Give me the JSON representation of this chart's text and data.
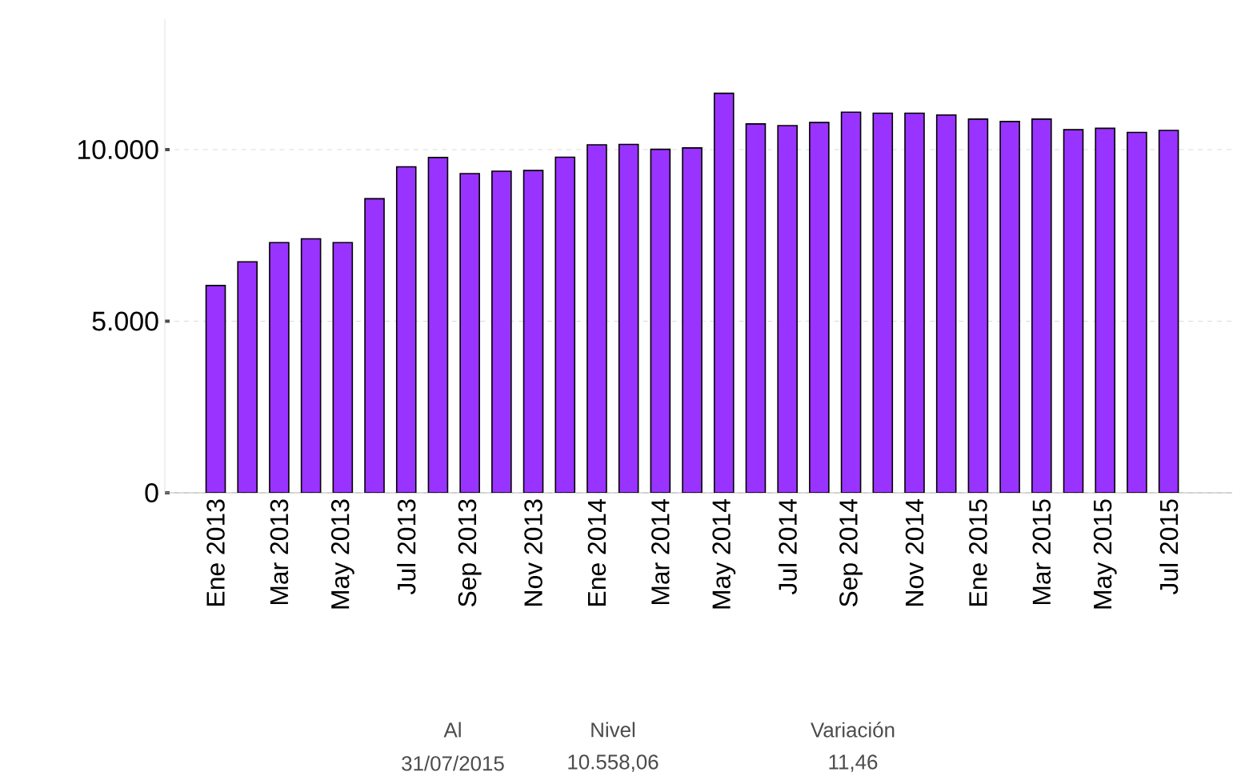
{
  "chart_data": {
    "type": "bar",
    "categories": [
      "Ene 2013",
      null,
      "Mar 2013",
      null,
      "May 2013",
      null,
      "Jul 2013",
      null,
      "Sep 2013",
      null,
      "Nov 2013",
      null,
      "Ene 2014",
      null,
      "Mar 2014",
      null,
      "May 2014",
      null,
      "Jul 2014",
      null,
      "Sep 2014",
      null,
      "Nov 2014",
      null,
      "Ene 2015",
      null,
      "Mar 2015",
      null,
      "May 2015",
      null,
      "Jul 2015"
    ],
    "values": [
      6040,
      6730,
      7290,
      7400,
      7290,
      8570,
      9500,
      9770,
      9300,
      9370,
      9390,
      9780,
      10140,
      10150,
      10010,
      10050,
      11640,
      10750,
      10700,
      10790,
      11090,
      11060,
      11060,
      11010,
      10890,
      10820,
      10890,
      10580,
      10620,
      10500,
      10560
    ],
    "color": "#9933ff",
    "ylim": [
      0,
      13800
    ],
    "yticks": [
      {
        "value": 0,
        "label": "0"
      },
      {
        "value": 5000,
        "label": "5.000"
      },
      {
        "value": 10000,
        "label": "10.000"
      }
    ],
    "grid": "y",
    "annotations": [
      "Al",
      "31/07/2015",
      "Nivel",
      "10.558,06",
      "Variación",
      "11,46"
    ]
  }
}
